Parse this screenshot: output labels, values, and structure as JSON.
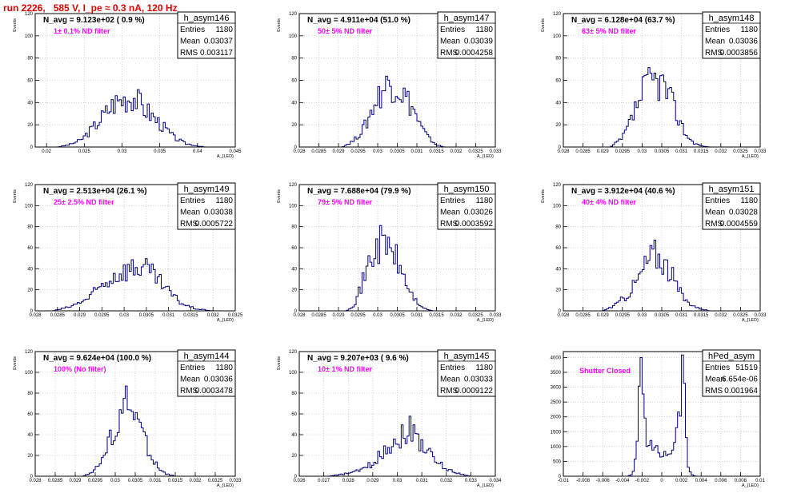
{
  "header": {
    "title": "run 2226,   585 V, I_pe ≈ 0.3 nA, 120 Hz"
  },
  "colors": {
    "title": "#e00000",
    "line": "#000080",
    "annotation": "#ff00ff",
    "grid": "#b8b8b8"
  },
  "chart_data": [
    {
      "type": "histogram",
      "name": "h_asym146",
      "ylabel": "Events",
      "xlabel": "A_{LED}",
      "ylim": [
        0,
        120
      ],
      "yticks": [
        0,
        20,
        40,
        60,
        80,
        100,
        120
      ],
      "xlim": [
        0.0185,
        0.045
      ],
      "xticks": [
        0.02,
        0.025,
        0.03,
        0.035,
        0.04,
        0.045
      ],
      "xticklabels": [
        "0.02",
        "0.025",
        "0.03",
        "0.035",
        "0.04",
        "0.045"
      ],
      "navg": "N_avg = 9.123e+02 ( 0.9 %)",
      "note": "1± 0.1% ND filter",
      "stats": [
        [
          "Entries",
          "1180"
        ],
        [
          "Mean",
          "0.03037"
        ],
        [
          "RMS",
          "0.003117"
        ]
      ],
      "profile": [
        [
          0.0215,
          0
        ],
        [
          0.023,
          2
        ],
        [
          0.0245,
          6
        ],
        [
          0.026,
          16
        ],
        [
          0.0275,
          28
        ],
        [
          0.029,
          40
        ],
        [
          0.0305,
          44
        ],
        [
          0.0315,
          46
        ],
        [
          0.0325,
          38
        ],
        [
          0.034,
          28
        ],
        [
          0.0355,
          18
        ],
        [
          0.037,
          8
        ],
        [
          0.0385,
          3
        ],
        [
          0.04,
          1
        ],
        [
          0.041,
          0
        ]
      ]
    },
    {
      "type": "histogram",
      "name": "h_asym147",
      "ylabel": "Events",
      "xlabel": "A_{LED}",
      "ylim": [
        0,
        120
      ],
      "yticks": [
        0,
        20,
        40,
        60,
        80,
        100,
        120
      ],
      "xlim": [
        0.028,
        0.033
      ],
      "xticks": [
        0.028,
        0.0285,
        0.029,
        0.0295,
        0.03,
        0.0305,
        0.031,
        0.0315,
        0.032,
        0.0325,
        0.033
      ],
      "xticklabels": [
        "0.028",
        "0.0285",
        "0.029",
        "0.0295",
        "0.03",
        "0.0305",
        "0.031",
        "0.0315",
        "0.032",
        "0.0325",
        "0.033"
      ],
      "navg": "N_avg = 4.911e+04 (51.0 %)",
      "note": "50± 5% ND filter",
      "stats": [
        [
          "Entries",
          "1180"
        ],
        [
          "Mean",
          "0.03039"
        ],
        [
          "RMS",
          "0.0004258"
        ]
      ],
      "profile": [
        [
          0.0291,
          0
        ],
        [
          0.0294,
          6
        ],
        [
          0.0297,
          20
        ],
        [
          0.0299,
          38
        ],
        [
          0.0301,
          50
        ],
        [
          0.0303,
          58
        ],
        [
          0.0305,
          55
        ],
        [
          0.0307,
          45
        ],
        [
          0.0309,
          35
        ],
        [
          0.0311,
          18
        ],
        [
          0.0313,
          8
        ],
        [
          0.0315,
          2
        ],
        [
          0.0317,
          0
        ]
      ]
    },
    {
      "type": "histogram",
      "name": "h_asym148",
      "ylabel": "Events",
      "xlabel": "A_{LED}",
      "ylim": [
        0,
        120
      ],
      "yticks": [
        0,
        20,
        40,
        60,
        80,
        100,
        120
      ],
      "xlim": [
        0.028,
        0.033
      ],
      "xticks": [
        0.028,
        0.0285,
        0.029,
        0.0295,
        0.03,
        0.0305,
        0.031,
        0.0315,
        0.032,
        0.0325,
        0.033
      ],
      "xticklabels": [
        "0.028",
        "0.0285",
        "0.029",
        "0.0295",
        "0.03",
        "0.0305",
        "0.031",
        "0.0315",
        "0.032",
        "0.0325",
        "0.033"
      ],
      "navg": "N_avg = 6.128e+04 (63.7 %)",
      "note": "63± 5% ND filter",
      "stats": [
        [
          "Entries",
          "1180"
        ],
        [
          "Mean",
          "0.03036"
        ],
        [
          "RMS",
          "0.0003856"
        ]
      ],
      "profile": [
        [
          0.0292,
          0
        ],
        [
          0.0295,
          8
        ],
        [
          0.0297,
          22
        ],
        [
          0.0299,
          40
        ],
        [
          0.0301,
          55
        ],
        [
          0.0303,
          60
        ],
        [
          0.0305,
          58
        ],
        [
          0.0307,
          45
        ],
        [
          0.0309,
          28
        ],
        [
          0.0311,
          12
        ],
        [
          0.0313,
          4
        ],
        [
          0.0315,
          1
        ],
        [
          0.0317,
          0
        ]
      ]
    },
    {
      "type": "histogram",
      "name": "h_asym149",
      "ylabel": "Events",
      "xlabel": "A_{LED}",
      "ylim": [
        0,
        120
      ],
      "yticks": [
        0,
        20,
        40,
        60,
        80,
        100,
        120
      ],
      "xlim": [
        0.028,
        0.0325
      ],
      "xticks": [
        0.028,
        0.0285,
        0.029,
        0.0295,
        0.03,
        0.0305,
        0.031,
        0.0315,
        0.032,
        0.0325
      ],
      "xticklabels": [
        "0.028",
        "0.0285",
        "0.029",
        "0.0295",
        "0.03",
        "0.0305",
        "0.031",
        "0.0315",
        "0.032",
        "0.0325"
      ],
      "navg": "N_avg = 2.513e+04 (26.1 %)",
      "note": "25± 2.5% ND filter",
      "stats": [
        [
          "Entries",
          "1180"
        ],
        [
          "Mean",
          "0.03038"
        ],
        [
          "RMS",
          "0.0005722"
        ]
      ],
      "profile": [
        [
          0.0284,
          0
        ],
        [
          0.0288,
          4
        ],
        [
          0.0292,
          12
        ],
        [
          0.0295,
          24
        ],
        [
          0.0298,
          34
        ],
        [
          0.0301,
          40
        ],
        [
          0.0304,
          42
        ],
        [
          0.0307,
          32
        ],
        [
          0.031,
          18
        ],
        [
          0.0313,
          7
        ],
        [
          0.0316,
          2
        ],
        [
          0.032,
          0
        ]
      ]
    },
    {
      "type": "histogram",
      "name": "h_asym150",
      "ylabel": "Events",
      "xlabel": "A_{LED}",
      "ylim": [
        0,
        120
      ],
      "yticks": [
        0,
        20,
        40,
        60,
        80,
        100,
        120
      ],
      "xlim": [
        0.028,
        0.033
      ],
      "xticks": [
        0.028,
        0.0285,
        0.029,
        0.0295,
        0.03,
        0.0305,
        0.031,
        0.0315,
        0.032,
        0.0325,
        0.033
      ],
      "xticklabels": [
        "0.028",
        "0.0285",
        "0.029",
        "0.0295",
        "0.03",
        "0.0305",
        "0.031",
        "0.0315",
        "0.032",
        "0.0325",
        "0.033"
      ],
      "navg": "N_avg = 7.688e+04 (79.9 %)",
      "note": "79± 5% ND filter",
      "stats": [
        [
          "Entries",
          "1180"
        ],
        [
          "Mean",
          "0.03026"
        ],
        [
          "RMS",
          "0.0003592"
        ]
      ],
      "profile": [
        [
          0.0292,
          0
        ],
        [
          0.0294,
          6
        ],
        [
          0.0296,
          25
        ],
        [
          0.0298,
          48
        ],
        [
          0.03,
          62
        ],
        [
          0.0302,
          65
        ],
        [
          0.0304,
          55
        ],
        [
          0.0306,
          38
        ],
        [
          0.0308,
          20
        ],
        [
          0.031,
          8
        ],
        [
          0.0312,
          2
        ],
        [
          0.0314,
          0
        ]
      ]
    },
    {
      "type": "histogram",
      "name": "h_asym151",
      "ylabel": "Events",
      "xlabel": "A_{LED}",
      "ylim": [
        0,
        120
      ],
      "yticks": [
        0,
        20,
        40,
        60,
        80,
        100,
        120
      ],
      "xlim": [
        0.028,
        0.033
      ],
      "xticks": [
        0.028,
        0.0285,
        0.029,
        0.0295,
        0.03,
        0.0305,
        0.031,
        0.0315,
        0.032,
        0.0325,
        0.033
      ],
      "xticklabels": [
        "0.028",
        "0.0285",
        "0.029",
        "0.0295",
        "0.03",
        "0.0305",
        "0.031",
        "0.0315",
        "0.032",
        "0.0325",
        "0.033"
      ],
      "navg": "N_avg = 3.912e+04 (40.6 %)",
      "note": "40± 4% ND filter",
      "stats": [
        [
          "Entries",
          "1180"
        ],
        [
          "Mean",
          "0.03028"
        ],
        [
          "RMS",
          "0.0004559"
        ]
      ],
      "profile": [
        [
          0.029,
          0
        ],
        [
          0.0293,
          5
        ],
        [
          0.0296,
          14
        ],
        [
          0.0299,
          30
        ],
        [
          0.0301,
          45
        ],
        [
          0.0303,
          55
        ],
        [
          0.0305,
          50
        ],
        [
          0.0307,
          38
        ],
        [
          0.0309,
          22
        ],
        [
          0.0311,
          10
        ],
        [
          0.0314,
          3
        ],
        [
          0.0317,
          0
        ]
      ]
    },
    {
      "type": "histogram",
      "name": "h_asym144",
      "ylabel": "Events",
      "xlabel": "A_{LED}",
      "ylim": [
        0,
        120
      ],
      "yticks": [
        0,
        20,
        40,
        60,
        80,
        100,
        120
      ],
      "xlim": [
        0.028,
        0.033
      ],
      "xticks": [
        0.028,
        0.0285,
        0.029,
        0.0295,
        0.03,
        0.0305,
        0.031,
        0.0315,
        0.032,
        0.0325,
        0.033
      ],
      "xticklabels": [
        "0.028",
        "0.0285",
        "0.029",
        "0.0295",
        "0.03",
        "0.0305",
        "0.031",
        "0.0315",
        "0.032",
        "0.0325",
        "0.033"
      ],
      "navg": "N_avg = 9.624e+04 (100.0 %)",
      "note": "100% (No filter)",
      "stats": [
        [
          "Entries",
          "1180"
        ],
        [
          "Mean",
          "0.03036"
        ],
        [
          "RMS",
          "0.0003478"
        ]
      ],
      "profile": [
        [
          0.0292,
          0
        ],
        [
          0.0295,
          6
        ],
        [
          0.0297,
          18
        ],
        [
          0.0299,
          38
        ],
        [
          0.0301,
          58
        ],
        [
          0.0303,
          70
        ],
        [
          0.0305,
          60
        ],
        [
          0.0307,
          40
        ],
        [
          0.0309,
          20
        ],
        [
          0.0311,
          7
        ],
        [
          0.0313,
          2
        ],
        [
          0.0315,
          0
        ]
      ]
    },
    {
      "type": "histogram",
      "name": "h_asym145",
      "ylabel": "Events",
      "xlabel": "A_{LED}",
      "ylim": [
        0,
        120
      ],
      "yticks": [
        0,
        20,
        40,
        60,
        80,
        100,
        120
      ],
      "xlim": [
        0.026,
        0.034
      ],
      "xticks": [
        0.026,
        0.027,
        0.028,
        0.029,
        0.03,
        0.031,
        0.032,
        0.033,
        0.034
      ],
      "xticklabels": [
        "0.026",
        "0.027",
        "0.028",
        "0.029",
        "0.03",
        "0.031",
        "0.032",
        "0.033",
        "0.034"
      ],
      "navg": "N_avg = 9.207e+03 ( 9.6 %)",
      "note": "10± 1% ND filter",
      "stats": [
        [
          "Entries",
          "1180"
        ],
        [
          "Mean",
          "0.03033"
        ],
        [
          "RMS",
          "0.0009122"
        ]
      ],
      "profile": [
        [
          0.0272,
          0
        ],
        [
          0.0278,
          2
        ],
        [
          0.0284,
          5
        ],
        [
          0.029,
          12
        ],
        [
          0.0295,
          26
        ],
        [
          0.03,
          36
        ],
        [
          0.0305,
          46
        ],
        [
          0.031,
          32
        ],
        [
          0.0315,
          16
        ],
        [
          0.032,
          7
        ],
        [
          0.0326,
          2
        ],
        [
          0.033,
          0
        ]
      ]
    },
    {
      "type": "histogram",
      "name": "hPed_asym",
      "ylabel": "",
      "xlabel": "A_{LED}",
      "ylim": [
        0,
        4200
      ],
      "yticks": [
        0,
        500,
        1000,
        1500,
        2000,
        2500,
        3000,
        3500,
        4000
      ],
      "xlim": [
        -0.01,
        0.01
      ],
      "xticks": [
        -0.01,
        -0.008,
        -0.006,
        -0.004,
        -0.002,
        0,
        0.002,
        0.004,
        0.006,
        0.008,
        0.01
      ],
      "xticklabels": [
        "-0.01",
        "-0.008",
        "-0.006",
        "-0.004",
        "-0.002",
        "0",
        "0.002",
        "0.004",
        "0.006",
        "0.008",
        "0.01"
      ],
      "navg": "",
      "note": "Shutter Closed",
      "stats": [
        [
          "Entries",
          "51519"
        ],
        [
          "Mean",
          "6.654e-06"
        ],
        [
          "RMS",
          "0.001964"
        ]
      ],
      "profile": [
        [
          -0.0035,
          0
        ],
        [
          -0.003,
          50
        ],
        [
          -0.0026,
          700
        ],
        [
          -0.0023,
          2500
        ],
        [
          -0.0021,
          3200
        ],
        [
          -0.0019,
          2500
        ],
        [
          -0.0016,
          1500
        ],
        [
          -0.0012,
          1050
        ],
        [
          -0.0008,
          900
        ],
        [
          -0.0004,
          820
        ],
        [
          0,
          800
        ],
        [
          0.0004,
          820
        ],
        [
          0.0008,
          900
        ],
        [
          0.0012,
          1100
        ],
        [
          0.0016,
          1600
        ],
        [
          0.0019,
          2800
        ],
        [
          0.0021,
          4000
        ],
        [
          0.0023,
          2600
        ],
        [
          0.0026,
          500
        ],
        [
          0.003,
          60
        ],
        [
          0.0034,
          0
        ]
      ]
    }
  ]
}
